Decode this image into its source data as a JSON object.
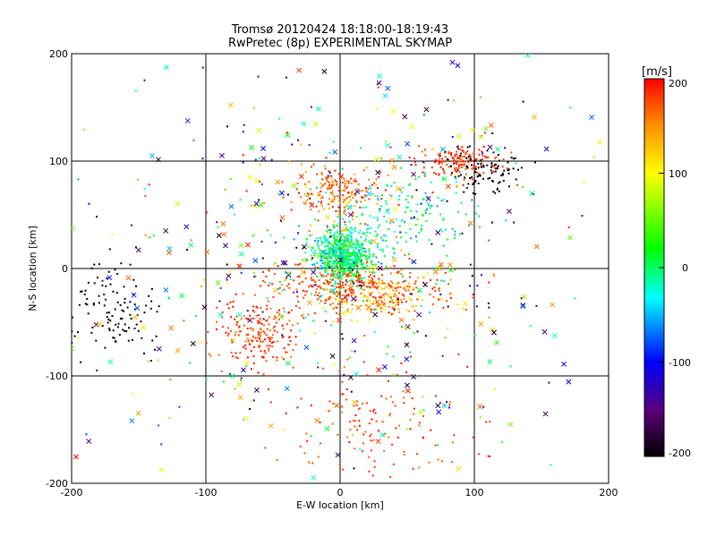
{
  "chart_data": [
    {
      "type": "scatter",
      "title": "Tromsø 20120424 18:18:00-18:19:43",
      "subtitle": "RwPretec (8p) EXPERIMENTAL SKYMAP",
      "xlabel": "E-W location [km]",
      "ylabel": "N-S location [km]",
      "xlim": [
        -200,
        200
      ],
      "ylim": [
        -200,
        200
      ],
      "xticks": [
        "-200",
        "-100",
        "0",
        "100",
        "200"
      ],
      "yticks": [
        "-200",
        "-100",
        "0",
        "100",
        "200"
      ],
      "grid": true,
      "grid_lines_x": [
        -100,
        0,
        100
      ],
      "grid_lines_y": [
        -100,
        0,
        100
      ],
      "marker_types": [
        "dot",
        "x"
      ],
      "series_description": "radial wind velocity detections at sky locations, colored by velocity",
      "clusters": [
        {
          "center": [
            0,
            15
          ],
          "spread": [
            12,
            12
          ],
          "count": 600,
          "marker": "dot",
          "velocity": [
            -60,
            60
          ]
        },
        {
          "center": [
            5,
            5
          ],
          "spread": [
            8,
            8
          ],
          "count": 200,
          "marker": "dot",
          "velocity": [
            -20,
            40
          ]
        },
        {
          "center": [
            0,
            70
          ],
          "spread": [
            18,
            12
          ],
          "count": 200,
          "marker": "dot",
          "velocity": [
            120,
            200
          ]
        },
        {
          "center": [
            -60,
            -60
          ],
          "spread": [
            15,
            15
          ],
          "count": 200,
          "marker": "dot",
          "velocity": [
            150,
            200
          ]
        },
        {
          "center": [
            30,
            -25
          ],
          "spread": [
            22,
            12
          ],
          "count": 260,
          "marker": "dot",
          "velocity": [
            80,
            200
          ]
        },
        {
          "center": [
            0,
            -15
          ],
          "spread": [
            30,
            10
          ],
          "count": 200,
          "marker": "dot",
          "velocity": [
            140,
            200
          ]
        },
        {
          "center": [
            90,
            100
          ],
          "spread": [
            15,
            8
          ],
          "count": 150,
          "marker": "dot",
          "velocity": [
            160,
            200
          ]
        },
        {
          "center": [
            108,
            90
          ],
          "spread": [
            15,
            10
          ],
          "count": 100,
          "marker": "dot",
          "velocity": [
            -220,
            -180
          ]
        },
        {
          "center": [
            50,
            50
          ],
          "spread": [
            25,
            20
          ],
          "count": 150,
          "marker": "dot",
          "velocity": [
            -60,
            40
          ]
        },
        {
          "center": [
            -170,
            -35
          ],
          "spread": [
            20,
            22
          ],
          "count": 120,
          "marker": "dot",
          "velocity": [
            -220,
            -190
          ]
        },
        {
          "center": [
            30,
            -140
          ],
          "spread": [
            30,
            30
          ],
          "count": 140,
          "marker": "dot",
          "velocity": [
            150,
            200
          ]
        },
        {
          "center": [
            0,
            0
          ],
          "spread": [
            90,
            90
          ],
          "count": 350,
          "marker": "dot",
          "velocity": [
            -200,
            200
          ]
        },
        {
          "center": [
            0,
            0
          ],
          "spread": [
            110,
            110
          ],
          "count": 260,
          "marker": "x",
          "velocity": [
            -200,
            200
          ]
        }
      ],
      "colorbar": {
        "label": "[m/s]",
        "min": -200,
        "max": 200,
        "ticks": [
          "200",
          "100",
          "0",
          "-100",
          "-200"
        ],
        "colors": [
          "#ff0000",
          "#ff8c00",
          "#ffff00",
          "#00ff00",
          "#00ffff",
          "#0000ff",
          "#5a0078",
          "#000000"
        ]
      }
    }
  ]
}
